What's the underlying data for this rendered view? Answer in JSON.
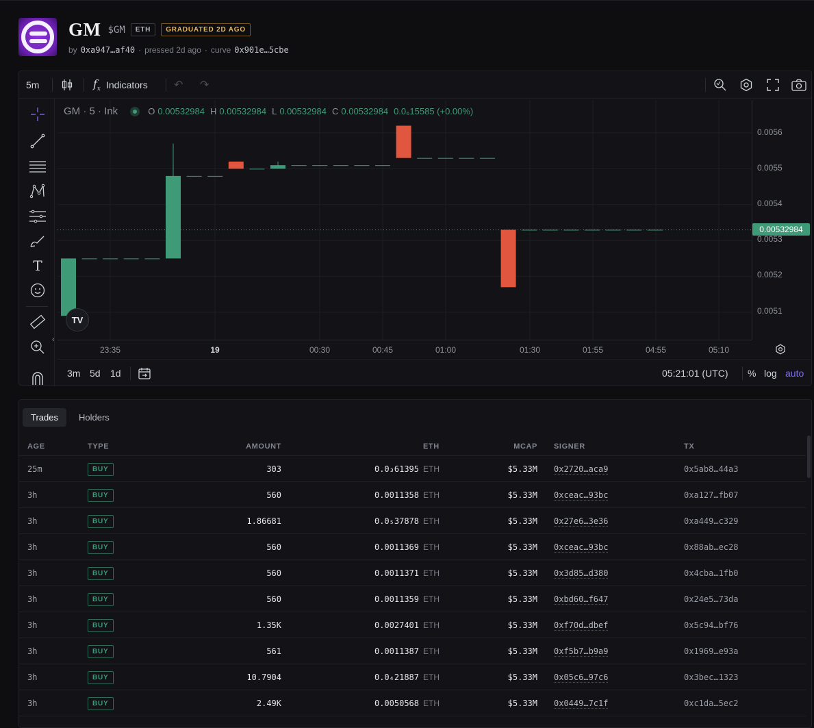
{
  "token": {
    "name": "GM",
    "ticker": "$GM",
    "chain": "ETH",
    "status": "GRADUATED 2D AGO",
    "by_label": "by",
    "creator": "0xa947…af40",
    "pressed": "pressed 2d ago",
    "curve_label": "curve",
    "curve": "0x901e…5cbe",
    "sep": "·"
  },
  "toolbar": {
    "interval": "5m",
    "indicators_label": "Indicators"
  },
  "legend": {
    "symbol": "GM · 5 · Ink",
    "o_label": "O",
    "o": "0.00532984",
    "h_label": "H",
    "h": "0.00532984",
    "l_label": "L",
    "l": "0.00532984",
    "c_label": "C",
    "c": "0.00532984",
    "change": "0.0₆15585 (+0.00%)"
  },
  "price_axis": {
    "ticks": [
      "0.0056",
      "0.0055",
      "0.0054",
      "0.0053",
      "0.0052",
      "0.0051"
    ],
    "current": "0.00532984"
  },
  "time_axis": {
    "ticks": [
      "23:35",
      "19",
      "00:30",
      "00:45",
      "01:00",
      "01:30",
      "01:55",
      "04:55",
      "05:10"
    ]
  },
  "bottom_bar": {
    "ranges": [
      "3m",
      "5d",
      "1d"
    ],
    "clock": "05:21:01 (UTC)",
    "pct": "%",
    "log": "log",
    "auto": "auto"
  },
  "colors": {
    "up": "#3f9a77",
    "down": "#e0563f",
    "accent": "#7e6ef0"
  },
  "chart_data": {
    "type": "candlestick",
    "y_range": [
      0.00504,
      0.00572
    ],
    "candles": [
      {
        "o": 0.00509,
        "h": 0.00525,
        "l": 0.00507,
        "c": 0.00525
      },
      {
        "o": 0.00525,
        "h": 0.00525,
        "l": 0.00525,
        "c": 0.00525
      },
      {
        "o": 0.00525,
        "h": 0.00525,
        "l": 0.00525,
        "c": 0.00525
      },
      {
        "o": 0.00525,
        "h": 0.00525,
        "l": 0.00525,
        "c": 0.00525
      },
      {
        "o": 0.00525,
        "h": 0.00525,
        "l": 0.00525,
        "c": 0.00525
      },
      {
        "o": 0.00525,
        "h": 0.00557,
        "l": 0.00525,
        "c": 0.00548
      },
      {
        "o": 0.00548,
        "h": 0.00548,
        "l": 0.00548,
        "c": 0.00548
      },
      {
        "o": 0.00548,
        "h": 0.00548,
        "l": 0.00548,
        "c": 0.00548
      },
      {
        "o": 0.00552,
        "h": 0.00552,
        "l": 0.0055,
        "c": 0.0055
      },
      {
        "o": 0.0055,
        "h": 0.0055,
        "l": 0.0055,
        "c": 0.0055
      },
      {
        "o": 0.0055,
        "h": 0.00552,
        "l": 0.0055,
        "c": 0.00551
      },
      {
        "o": 0.00551,
        "h": 0.00551,
        "l": 0.00551,
        "c": 0.00551
      },
      {
        "o": 0.00551,
        "h": 0.00551,
        "l": 0.00551,
        "c": 0.00551
      },
      {
        "o": 0.00551,
        "h": 0.00551,
        "l": 0.00551,
        "c": 0.00551
      },
      {
        "o": 0.00551,
        "h": 0.00551,
        "l": 0.00551,
        "c": 0.00551
      },
      {
        "o": 0.00551,
        "h": 0.00551,
        "l": 0.00551,
        "c": 0.00551
      },
      {
        "o": 0.00562,
        "h": 0.00562,
        "l": 0.00553,
        "c": 0.00553
      },
      {
        "o": 0.00553,
        "h": 0.00553,
        "l": 0.00553,
        "c": 0.00553
      },
      {
        "o": 0.00553,
        "h": 0.00553,
        "l": 0.00553,
        "c": 0.00553
      },
      {
        "o": 0.00553,
        "h": 0.00553,
        "l": 0.00553,
        "c": 0.00553
      },
      {
        "o": 0.00553,
        "h": 0.00553,
        "l": 0.00553,
        "c": 0.00553
      },
      {
        "o": 0.00533,
        "h": 0.00533,
        "l": 0.00517,
        "c": 0.00517
      },
      {
        "o": 0.00533,
        "h": 0.00533,
        "l": 0.00533,
        "c": 0.00533
      },
      {
        "o": 0.00533,
        "h": 0.00533,
        "l": 0.00533,
        "c": 0.00533
      },
      {
        "o": 0.00533,
        "h": 0.00533,
        "l": 0.00533,
        "c": 0.00533
      },
      {
        "o": 0.00533,
        "h": 0.00533,
        "l": 0.00533,
        "c": 0.00533
      },
      {
        "o": 0.00533,
        "h": 0.00533,
        "l": 0.00533,
        "c": 0.00533
      },
      {
        "o": 0.00533,
        "h": 0.00533,
        "l": 0.00533,
        "c": 0.00533
      },
      {
        "o": 0.00533,
        "h": 0.00533,
        "l": 0.00533,
        "c": 0.00533
      }
    ],
    "current_price": 0.00532984
  },
  "trades": {
    "tabs": [
      "Trades",
      "Holders"
    ],
    "columns": [
      "AGE",
      "TYPE",
      "AMOUNT",
      "ETH",
      "MCAP",
      "SIGNER",
      "TX"
    ],
    "rows": [
      {
        "age": "25m",
        "type": "BUY",
        "amount": "303",
        "eth": "0.0₃61395",
        "unit": "ETH",
        "mcap": "$5.33M",
        "signer": "0x2720…aca9",
        "tx": "0x5ab8…44a3"
      },
      {
        "age": "3h",
        "type": "BUY",
        "amount": "560",
        "eth": "0.0011358",
        "unit": "ETH",
        "mcap": "$5.33M",
        "signer": "0xceac…93bc",
        "tx": "0xa127…fb07"
      },
      {
        "age": "3h",
        "type": "BUY",
        "amount": "1.86681",
        "eth": "0.0₅37878",
        "unit": "ETH",
        "mcap": "$5.33M",
        "signer": "0x27e6…3e36",
        "tx": "0xa449…c329"
      },
      {
        "age": "3h",
        "type": "BUY",
        "amount": "560",
        "eth": "0.0011369",
        "unit": "ETH",
        "mcap": "$5.33M",
        "signer": "0xceac…93bc",
        "tx": "0x88ab…ec28"
      },
      {
        "age": "3h",
        "type": "BUY",
        "amount": "560",
        "eth": "0.0011371",
        "unit": "ETH",
        "mcap": "$5.33M",
        "signer": "0x3d85…d380",
        "tx": "0x4cba…1fb0"
      },
      {
        "age": "3h",
        "type": "BUY",
        "amount": "560",
        "eth": "0.0011359",
        "unit": "ETH",
        "mcap": "$5.33M",
        "signer": "0xbd60…f647",
        "tx": "0x24e5…73da"
      },
      {
        "age": "3h",
        "type": "BUY",
        "amount": "1.35K",
        "eth": "0.0027401",
        "unit": "ETH",
        "mcap": "$5.33M",
        "signer": "0xf70d…dbef",
        "tx": "0x5c94…bf76"
      },
      {
        "age": "3h",
        "type": "BUY",
        "amount": "561",
        "eth": "0.0011387",
        "unit": "ETH",
        "mcap": "$5.33M",
        "signer": "0xf5b7…b9a9",
        "tx": "0x1969…e93a"
      },
      {
        "age": "3h",
        "type": "BUY",
        "amount": "10.7904",
        "eth": "0.0₄21887",
        "unit": "ETH",
        "mcap": "$5.33M",
        "signer": "0x05c6…97c6",
        "tx": "0x3bec…1323"
      },
      {
        "age": "3h",
        "type": "BUY",
        "amount": "2.49K",
        "eth": "0.0050568",
        "unit": "ETH",
        "mcap": "$5.33M",
        "signer": "0x0449…7c1f",
        "tx": "0xc1da…5ec2"
      }
    ]
  }
}
